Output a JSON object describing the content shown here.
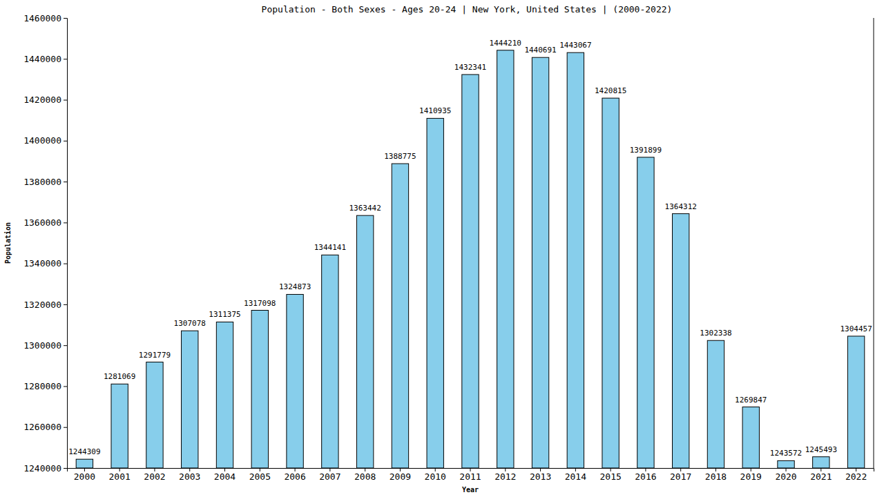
{
  "chart_data": {
    "type": "bar",
    "title": "Population - Both Sexes - Ages 20-24 | New York, United States |  (2000-2022)",
    "x_label": "Year",
    "y_label": "Population",
    "categories": [
      "2000",
      "2001",
      "2002",
      "2003",
      "2004",
      "2005",
      "2006",
      "2007",
      "2008",
      "2009",
      "2010",
      "2011",
      "2012",
      "2013",
      "2014",
      "2015",
      "2016",
      "2017",
      "2018",
      "2019",
      "2020",
      "2021",
      "2022"
    ],
    "values": [
      1244309,
      1281069,
      1291779,
      1307078,
      1311375,
      1317098,
      1324873,
      1344141,
      1363442,
      1388775,
      1410935,
      1432341,
      1444210,
      1440691,
      1443067,
      1420815,
      1391899,
      1364312,
      1302338,
      1269847,
      1243572,
      1245493,
      1304457
    ],
    "color": "#87ceeb",
    "ylim": [
      1240000,
      1460000
    ],
    "yticks": [
      1240000,
      1260000,
      1280000,
      1300000,
      1320000,
      1340000,
      1360000,
      1380000,
      1400000,
      1420000,
      1440000,
      1460000
    ],
    "data_labels": true,
    "grid": false
  }
}
